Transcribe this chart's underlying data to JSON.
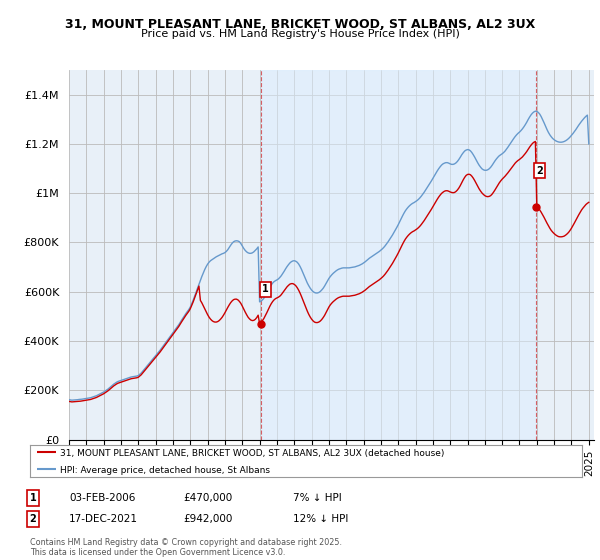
{
  "title": "31, MOUNT PLEASANT LANE, BRICKET WOOD, ST ALBANS, AL2 3UX",
  "subtitle": "Price paid vs. HM Land Registry's House Price Index (HPI)",
  "background_color": "#ffffff",
  "plot_bg_color": "#e8f0f8",
  "grid_color": "#bbbbbb",
  "red_line_color": "#cc0000",
  "blue_line_color": "#6699cc",
  "shade_color": "#ddeeff",
  "ylim": [
    0,
    1500000
  ],
  "yticks": [
    0,
    200000,
    400000,
    600000,
    800000,
    1000000,
    1200000,
    1400000
  ],
  "ytick_labels": [
    "£0",
    "£200K",
    "£400K",
    "£600K",
    "£800K",
    "£1M",
    "£1.2M",
    "£1.4M"
  ],
  "marker1_date_x": 2006.09,
  "marker2_date_x": 2021.96,
  "marker1_label": "1",
  "marker2_label": "2",
  "marker1_y_red": 470000,
  "marker2_y_red": 942000,
  "legend_entries": [
    "31, MOUNT PLEASANT LANE, BRICKET WOOD, ST ALBANS, AL2 3UX (detached house)",
    "HPI: Average price, detached house, St Albans"
  ],
  "annotation1": [
    "1",
    "03-FEB-2006",
    "£470,000",
    "7% ↓ HPI"
  ],
  "annotation2": [
    "2",
    "17-DEC-2021",
    "£942,000",
    "12% ↓ HPI"
  ],
  "footer": "Contains HM Land Registry data © Crown copyright and database right 2025.\nThis data is licensed under the Open Government Licence v3.0.",
  "xtick_years": [
    1995,
    1996,
    1997,
    1998,
    1999,
    2000,
    2001,
    2002,
    2003,
    2004,
    2005,
    2006,
    2007,
    2008,
    2009,
    2010,
    2011,
    2012,
    2013,
    2014,
    2015,
    2016,
    2017,
    2018,
    2019,
    2020,
    2021,
    2022,
    2023,
    2024,
    2025
  ],
  "hpi_x": [
    1995.0,
    1995.083,
    1995.167,
    1995.25,
    1995.333,
    1995.417,
    1995.5,
    1995.583,
    1995.667,
    1995.75,
    1995.833,
    1995.917,
    1996.0,
    1996.083,
    1996.167,
    1996.25,
    1996.333,
    1996.417,
    1996.5,
    1996.583,
    1996.667,
    1996.75,
    1996.833,
    1996.917,
    1997.0,
    1997.083,
    1997.167,
    1997.25,
    1997.333,
    1997.417,
    1997.5,
    1997.583,
    1997.667,
    1997.75,
    1997.833,
    1997.917,
    1998.0,
    1998.083,
    1998.167,
    1998.25,
    1998.333,
    1998.417,
    1998.5,
    1998.583,
    1998.667,
    1998.75,
    1998.833,
    1998.917,
    1999.0,
    1999.083,
    1999.167,
    1999.25,
    1999.333,
    1999.417,
    1999.5,
    1999.583,
    1999.667,
    1999.75,
    1999.833,
    1999.917,
    2000.0,
    2000.083,
    2000.167,
    2000.25,
    2000.333,
    2000.417,
    2000.5,
    2000.583,
    2000.667,
    2000.75,
    2000.833,
    2000.917,
    2001.0,
    2001.083,
    2001.167,
    2001.25,
    2001.333,
    2001.417,
    2001.5,
    2001.583,
    2001.667,
    2001.75,
    2001.833,
    2001.917,
    2002.0,
    2002.083,
    2002.167,
    2002.25,
    2002.333,
    2002.417,
    2002.5,
    2002.583,
    2002.667,
    2002.75,
    2002.833,
    2002.917,
    2003.0,
    2003.083,
    2003.167,
    2003.25,
    2003.333,
    2003.417,
    2003.5,
    2003.583,
    2003.667,
    2003.75,
    2003.833,
    2003.917,
    2004.0,
    2004.083,
    2004.167,
    2004.25,
    2004.333,
    2004.417,
    2004.5,
    2004.583,
    2004.667,
    2004.75,
    2004.833,
    2004.917,
    2005.0,
    2005.083,
    2005.167,
    2005.25,
    2005.333,
    2005.417,
    2005.5,
    2005.583,
    2005.667,
    2005.75,
    2005.833,
    2005.917,
    2006.0,
    2006.083,
    2006.167,
    2006.25,
    2006.333,
    2006.417,
    2006.5,
    2006.583,
    2006.667,
    2006.75,
    2006.833,
    2006.917,
    2007.0,
    2007.083,
    2007.167,
    2007.25,
    2007.333,
    2007.417,
    2007.5,
    2007.583,
    2007.667,
    2007.75,
    2007.833,
    2007.917,
    2008.0,
    2008.083,
    2008.167,
    2008.25,
    2008.333,
    2008.417,
    2008.5,
    2008.583,
    2008.667,
    2008.75,
    2008.833,
    2008.917,
    2009.0,
    2009.083,
    2009.167,
    2009.25,
    2009.333,
    2009.417,
    2009.5,
    2009.583,
    2009.667,
    2009.75,
    2009.833,
    2009.917,
    2010.0,
    2010.083,
    2010.167,
    2010.25,
    2010.333,
    2010.417,
    2010.5,
    2010.583,
    2010.667,
    2010.75,
    2010.833,
    2010.917,
    2011.0,
    2011.083,
    2011.167,
    2011.25,
    2011.333,
    2011.417,
    2011.5,
    2011.583,
    2011.667,
    2011.75,
    2011.833,
    2011.917,
    2012.0,
    2012.083,
    2012.167,
    2012.25,
    2012.333,
    2012.417,
    2012.5,
    2012.583,
    2012.667,
    2012.75,
    2012.833,
    2012.917,
    2013.0,
    2013.083,
    2013.167,
    2013.25,
    2013.333,
    2013.417,
    2013.5,
    2013.583,
    2013.667,
    2013.75,
    2013.833,
    2013.917,
    2014.0,
    2014.083,
    2014.167,
    2014.25,
    2014.333,
    2014.417,
    2014.5,
    2014.583,
    2014.667,
    2014.75,
    2014.833,
    2014.917,
    2015.0,
    2015.083,
    2015.167,
    2015.25,
    2015.333,
    2015.417,
    2015.5,
    2015.583,
    2015.667,
    2015.75,
    2015.833,
    2015.917,
    2016.0,
    2016.083,
    2016.167,
    2016.25,
    2016.333,
    2016.417,
    2016.5,
    2016.583,
    2016.667,
    2016.75,
    2016.833,
    2016.917,
    2017.0,
    2017.083,
    2017.167,
    2017.25,
    2017.333,
    2017.417,
    2017.5,
    2017.583,
    2017.667,
    2017.75,
    2017.833,
    2017.917,
    2018.0,
    2018.083,
    2018.167,
    2018.25,
    2018.333,
    2018.417,
    2018.5,
    2018.583,
    2018.667,
    2018.75,
    2018.833,
    2018.917,
    2019.0,
    2019.083,
    2019.167,
    2019.25,
    2019.333,
    2019.417,
    2019.5,
    2019.583,
    2019.667,
    2019.75,
    2019.833,
    2019.917,
    2020.0,
    2020.083,
    2020.167,
    2020.25,
    2020.333,
    2020.417,
    2020.5,
    2020.583,
    2020.667,
    2020.75,
    2020.833,
    2020.917,
    2021.0,
    2021.083,
    2021.167,
    2021.25,
    2021.333,
    2021.417,
    2021.5,
    2021.583,
    2021.667,
    2021.75,
    2021.833,
    2021.917,
    2022.0,
    2022.083,
    2022.167,
    2022.25,
    2022.333,
    2022.417,
    2022.5,
    2022.583,
    2022.667,
    2022.75,
    2022.833,
    2022.917,
    2023.0,
    2023.083,
    2023.167,
    2023.25,
    2023.333,
    2023.417,
    2023.5,
    2023.583,
    2023.667,
    2023.75,
    2023.833,
    2023.917,
    2024.0,
    2024.083,
    2024.167,
    2024.25,
    2024.333,
    2024.417,
    2024.5,
    2024.583,
    2024.667,
    2024.75,
    2024.833,
    2024.917,
    2025.0
  ],
  "hpi_y": [
    162000,
    161000,
    160000,
    160500,
    161000,
    161500,
    162000,
    163000,
    163500,
    164000,
    165000,
    166000,
    167000,
    168000,
    169000,
    170000,
    172000,
    174000,
    176000,
    178000,
    181000,
    184000,
    187000,
    190000,
    193000,
    197000,
    201000,
    205000,
    210000,
    215000,
    220000,
    225000,
    229000,
    233000,
    236000,
    238000,
    240000,
    242000,
    244000,
    246000,
    248000,
    250000,
    252000,
    254000,
    255000,
    256000,
    257000,
    258000,
    260000,
    265000,
    270000,
    277000,
    284000,
    291000,
    298000,
    305000,
    312000,
    319000,
    326000,
    333000,
    340000,
    347000,
    354000,
    362000,
    370000,
    378000,
    386000,
    394000,
    402000,
    410000,
    418000,
    426000,
    434000,
    442000,
    450000,
    458000,
    466000,
    476000,
    485000,
    494000,
    503000,
    512000,
    520000,
    528000,
    538000,
    552000,
    566000,
    582000,
    598000,
    614000,
    630000,
    646000,
    662000,
    676000,
    690000,
    702000,
    712000,
    720000,
    726000,
    730000,
    734000,
    738000,
    742000,
    745000,
    748000,
    751000,
    754000,
    756000,
    759000,
    764000,
    771000,
    780000,
    789000,
    797000,
    803000,
    806000,
    807000,
    806000,
    803000,
    796000,
    786000,
    776000,
    768000,
    762000,
    758000,
    756000,
    756000,
    758000,
    762000,
    768000,
    774000,
    782000,
    559000,
    562000,
    567000,
    574000,
    583000,
    594000,
    606000,
    617000,
    627000,
    635000,
    641000,
    645000,
    648000,
    652000,
    658000,
    665000,
    674000,
    683000,
    693000,
    702000,
    710000,
    717000,
    722000,
    725000,
    726000,
    724000,
    720000,
    713000,
    703000,
    691000,
    677000,
    663000,
    649000,
    636000,
    625000,
    615000,
    607000,
    601000,
    597000,
    595000,
    595000,
    597000,
    601000,
    607000,
    614000,
    623000,
    633000,
    644000,
    654000,
    662000,
    669000,
    675000,
    680000,
    685000,
    689000,
    692000,
    694000,
    696000,
    697000,
    697000,
    697000,
    697000,
    697000,
    698000,
    699000,
    700000,
    701000,
    703000,
    705000,
    707000,
    710000,
    713000,
    717000,
    721000,
    726000,
    731000,
    736000,
    740000,
    744000,
    748000,
    752000,
    756000,
    760000,
    764000,
    769000,
    774000,
    780000,
    787000,
    795000,
    803000,
    812000,
    821000,
    830000,
    840000,
    850000,
    861000,
    872000,
    884000,
    896000,
    908000,
    919000,
    929000,
    937000,
    944000,
    950000,
    955000,
    959000,
    962000,
    966000,
    970000,
    975000,
    981000,
    988000,
    996000,
    1004000,
    1013000,
    1022000,
    1031000,
    1040000,
    1050000,
    1060000,
    1070000,
    1080000,
    1090000,
    1099000,
    1107000,
    1114000,
    1119000,
    1122000,
    1124000,
    1124000,
    1122000,
    1119000,
    1117000,
    1117000,
    1119000,
    1123000,
    1129000,
    1137000,
    1146000,
    1156000,
    1164000,
    1171000,
    1175000,
    1177000,
    1176000,
    1172000,
    1165000,
    1156000,
    1146000,
    1135000,
    1124000,
    1114000,
    1106000,
    1099000,
    1095000,
    1093000,
    1093000,
    1095000,
    1099000,
    1105000,
    1113000,
    1122000,
    1131000,
    1139000,
    1146000,
    1152000,
    1156000,
    1160000,
    1165000,
    1171000,
    1179000,
    1187000,
    1196000,
    1205000,
    1214000,
    1222000,
    1230000,
    1237000,
    1243000,
    1248000,
    1254000,
    1261000,
    1269000,
    1278000,
    1288000,
    1299000,
    1309000,
    1318000,
    1325000,
    1330000,
    1333000,
    1332000,
    1328000,
    1321000,
    1311000,
    1299000,
    1286000,
    1272000,
    1259000,
    1247000,
    1237000,
    1229000,
    1222000,
    1217000,
    1213000,
    1210000,
    1208000,
    1207000,
    1207000,
    1208000,
    1210000,
    1213000,
    1217000,
    1222000,
    1228000,
    1235000,
    1242000,
    1250000,
    1258000,
    1267000,
    1276000,
    1284000,
    1292000,
    1299000,
    1306000,
    1312000,
    1317000,
    1200000
  ],
  "price_y": [
    155000,
    154000,
    153000,
    153500,
    154000,
    154500,
    155000,
    155500,
    156000,
    157000,
    158000,
    159000,
    160000,
    161000,
    162000,
    163000,
    165000,
    167000,
    169000,
    171000,
    174000,
    177000,
    180000,
    183000,
    186000,
    190000,
    194000,
    198000,
    203000,
    208000,
    213000,
    218000,
    222000,
    226000,
    229000,
    231000,
    233000,
    235000,
    237000,
    239000,
    241000,
    243000,
    245000,
    247000,
    248000,
    249000,
    250000,
    251000,
    253000,
    258000,
    263000,
    270000,
    277000,
    284000,
    291000,
    298000,
    305000,
    312000,
    319000,
    326000,
    333000,
    340000,
    347000,
    355000,
    363000,
    371000,
    379000,
    387000,
    395000,
    403000,
    411000,
    419000,
    427000,
    435000,
    443000,
    451000,
    459000,
    469000,
    478000,
    487000,
    496000,
    505000,
    513000,
    521000,
    531000,
    545000,
    559000,
    575000,
    591000,
    607000,
    623000,
    565000,
    555000,
    543000,
    531000,
    519000,
    507000,
    497000,
    489000,
    483000,
    479000,
    477000,
    477000,
    479000,
    483000,
    489000,
    496000,
    505000,
    515000,
    526000,
    537000,
    547000,
    556000,
    563000,
    568000,
    570000,
    570000,
    567000,
    561000,
    553000,
    542000,
    530000,
    518000,
    507000,
    497000,
    490000,
    485000,
    483000,
    484000,
    488000,
    495000,
    505000,
    470000,
    476000,
    483000,
    492000,
    503000,
    515000,
    528000,
    540000,
    551000,
    560000,
    567000,
    572000,
    575000,
    578000,
    582000,
    588000,
    596000,
    604000,
    612000,
    620000,
    626000,
    631000,
    633000,
    633000,
    630000,
    625000,
    617000,
    607000,
    595000,
    581000,
    566000,
    551000,
    536000,
    522000,
    509000,
    498000,
    489000,
    482000,
    477000,
    475000,
    475000,
    477000,
    481000,
    487000,
    495000,
    504000,
    515000,
    527000,
    538000,
    547000,
    554000,
    560000,
    565000,
    570000,
    574000,
    577000,
    579000,
    581000,
    582000,
    582000,
    582000,
    582000,
    582000,
    583000,
    584000,
    585000,
    586000,
    588000,
    590000,
    592000,
    595000,
    598000,
    602000,
    606000,
    611000,
    616000,
    621000,
    625000,
    629000,
    633000,
    637000,
    641000,
    645000,
    649000,
    654000,
    659000,
    665000,
    672000,
    680000,
    688000,
    697000,
    706000,
    715000,
    725000,
    735000,
    746000,
    757000,
    769000,
    781000,
    793000,
    804000,
    814000,
    822000,
    829000,
    835000,
    840000,
    844000,
    847000,
    851000,
    855000,
    860000,
    866000,
    873000,
    881000,
    889000,
    898000,
    907000,
    916000,
    925000,
    935000,
    945000,
    955000,
    965000,
    975000,
    984000,
    992000,
    999000,
    1004000,
    1008000,
    1010000,
    1010000,
    1008000,
    1005000,
    1003000,
    1002000,
    1003000,
    1007000,
    1013000,
    1021000,
    1031000,
    1043000,
    1054000,
    1064000,
    1072000,
    1076000,
    1077000,
    1075000,
    1069000,
    1061000,
    1051000,
    1040000,
    1029000,
    1018000,
    1009000,
    1001000,
    995000,
    990000,
    987000,
    986000,
    987000,
    990000,
    996000,
    1004000,
    1013000,
    1023000,
    1033000,
    1042000,
    1050000,
    1057000,
    1063000,
    1069000,
    1076000,
    1083000,
    1091000,
    1099000,
    1107000,
    1115000,
    1122000,
    1128000,
    1133000,
    1137000,
    1142000,
    1147000,
    1154000,
    1161000,
    1169000,
    1178000,
    1187000,
    1195000,
    1202000,
    1207000,
    1210000,
    942000,
    938000,
    932000,
    923000,
    913000,
    902000,
    890000,
    879000,
    868000,
    858000,
    849000,
    842000,
    836000,
    831000,
    827000,
    824000,
    823000,
    823000,
    824000,
    826000,
    830000,
    835000,
    841000,
    849000,
    858000,
    868000,
    879000,
    890000,
    901000,
    912000,
    922000,
    932000,
    940000,
    947000,
    954000,
    959000,
    963000
  ]
}
